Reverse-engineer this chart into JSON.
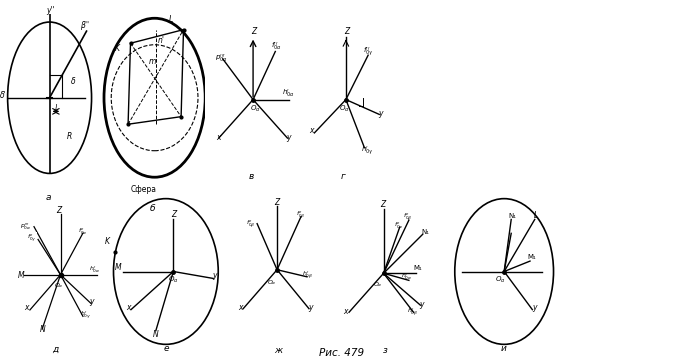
{
  "title": "Рис. 479",
  "bg_color": "#ffffff",
  "line_color": "#000000",
  "fig_labels": [
    "а",
    "б",
    "в",
    "г",
    "д",
    "е",
    "ж",
    "з",
    "и"
  ],
  "subfig_labels_bottom": [
    "а",
    "б",
    "в",
    "г",
    "д",
    "е",
    "ж",
    "з",
    "и"
  ]
}
